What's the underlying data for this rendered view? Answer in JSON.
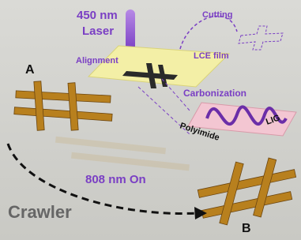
{
  "labels": {
    "laser_wavelength": "450 nm",
    "laser": "Laser",
    "cutting": "Cutting",
    "alignment": "Alignment",
    "lce_film": "LCE film",
    "carbonization": "Carbonization",
    "polyimide": "Polyimide",
    "lig": "LIG",
    "state_a": "A",
    "irradiation": "808 nm On",
    "crawler": "Crawler",
    "state_b": "B"
  }
}
